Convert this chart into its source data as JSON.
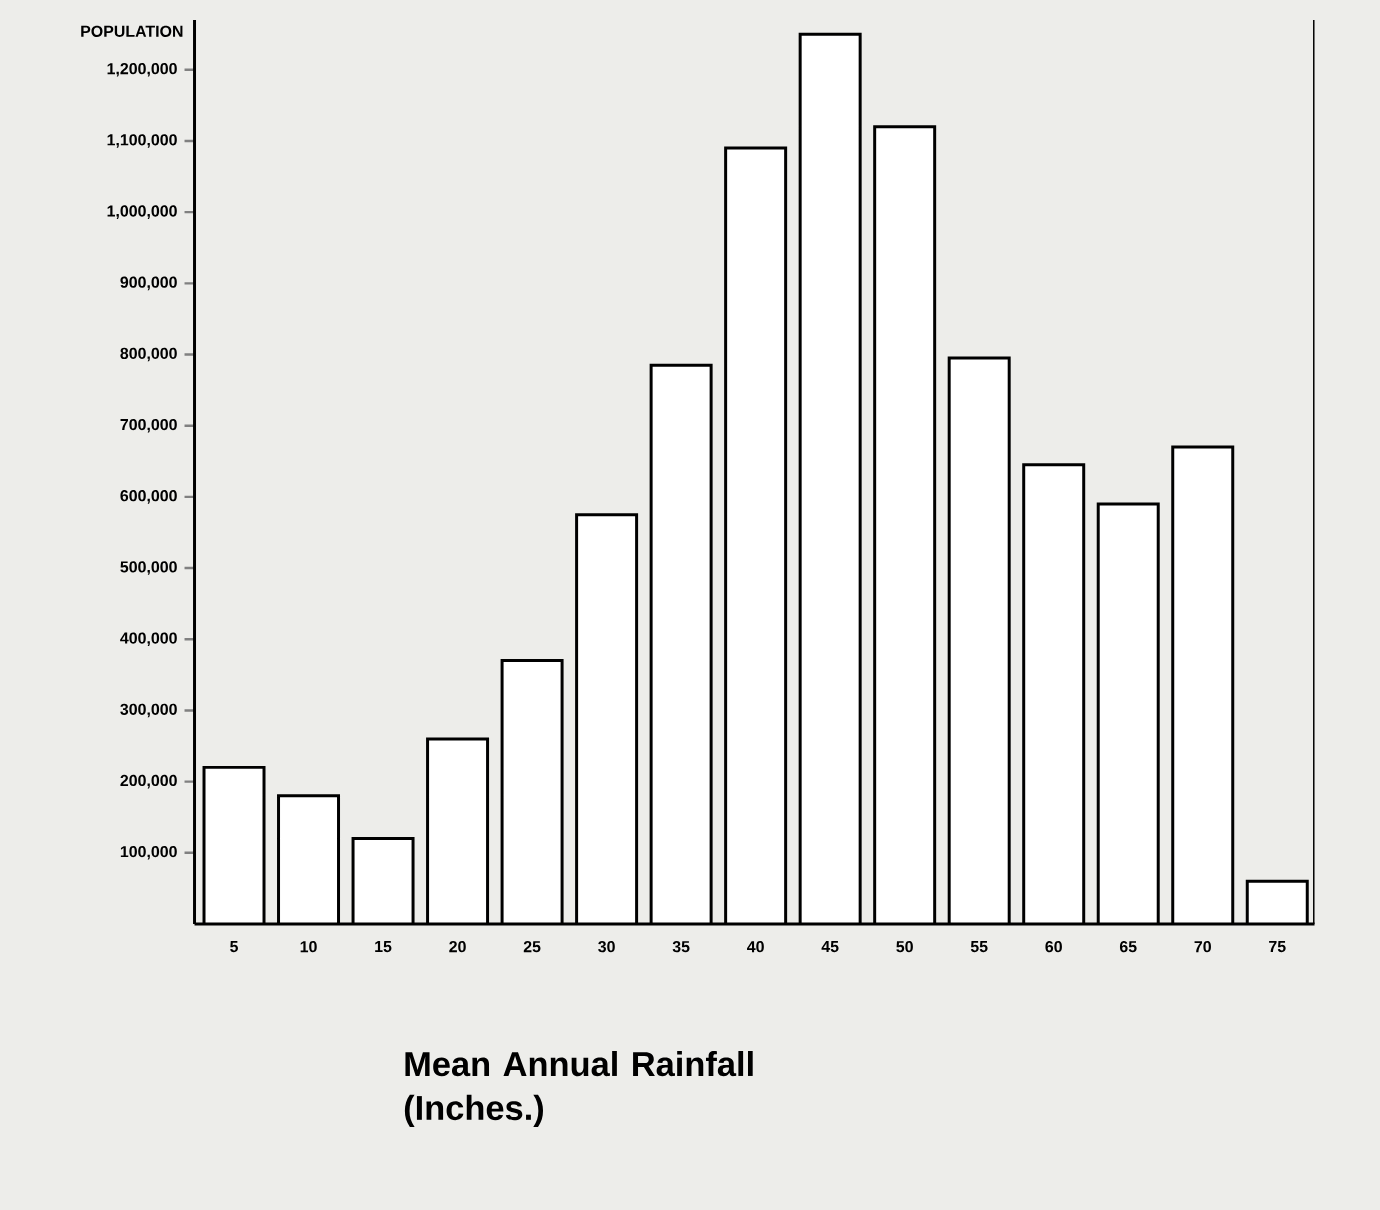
{
  "chart_data": {
    "type": "bar",
    "ylabel": "POPULATION",
    "xlabel": "Mean Annual Rainfall (Inches.)",
    "categories": [
      "5",
      "10",
      "15",
      "20",
      "25",
      "30",
      "35",
      "40",
      "45",
      "50",
      "55",
      "60",
      "65",
      "70",
      "75"
    ],
    "values": [
      220000,
      180000,
      120000,
      260000,
      370000,
      575000,
      785000,
      1090000,
      1250000,
      1120000,
      795000,
      645000,
      590000,
      670000,
      60000
    ],
    "color": "#ffffff",
    "ylim": [
      0,
      1270000
    ],
    "yticks": [
      {
        "value": 100000,
        "label": "100,000"
      },
      {
        "value": 200000,
        "label": "200,000"
      },
      {
        "value": 300000,
        "label": "300,000"
      },
      {
        "value": 400000,
        "label": "400,000"
      },
      {
        "value": 500000,
        "label": "500,000"
      },
      {
        "value": 600000,
        "label": "600,000"
      },
      {
        "value": 700000,
        "label": "700,000"
      },
      {
        "value": 800000,
        "label": "800,000"
      },
      {
        "value": 900000,
        "label": "900,000"
      },
      {
        "value": 1000000,
        "label": "1,000,000"
      },
      {
        "value": 1100000,
        "label": "1,100,000"
      },
      {
        "value": 1200000,
        "label": "1,200,000"
      }
    ],
    "grid": false
  }
}
